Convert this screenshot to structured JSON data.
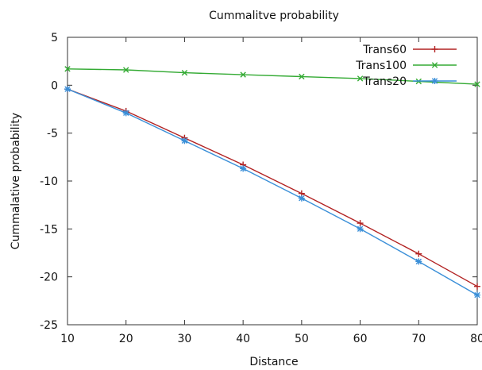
{
  "chart_data": {
    "type": "line",
    "title": "Cummalitve probability",
    "xlabel": "Distance",
    "ylabel": "Cummalative probability",
    "xlim": [
      10,
      80
    ],
    "ylim": [
      -25,
      5
    ],
    "grid": false,
    "legend_position": "top-right",
    "x": [
      10,
      20,
      30,
      40,
      50,
      60,
      70,
      80
    ],
    "x_ticks": [
      "10",
      "20",
      "30",
      "40",
      "50",
      "60",
      "70",
      "80"
    ],
    "y_ticks": [
      "5",
      "0",
      "-5",
      "-10",
      "-15",
      "-20",
      "-25"
    ],
    "series": [
      {
        "name": "Trans60",
        "color": "#b22222",
        "marker": "plus",
        "values": [
          -0.4,
          -2.7,
          -5.5,
          -8.3,
          -11.3,
          -14.4,
          -17.6,
          -21.0
        ]
      },
      {
        "name": "Trans100",
        "color": "#33aa33",
        "marker": "cross",
        "values": [
          1.7,
          1.6,
          1.3,
          1.1,
          0.9,
          0.7,
          0.4,
          0.1
        ]
      },
      {
        "name": "Trans20",
        "color": "#3a8fd8",
        "marker": "star",
        "values": [
          -0.4,
          -2.9,
          -5.8,
          -8.7,
          -11.8,
          -15.0,
          -18.4,
          -21.9
        ]
      }
    ]
  }
}
